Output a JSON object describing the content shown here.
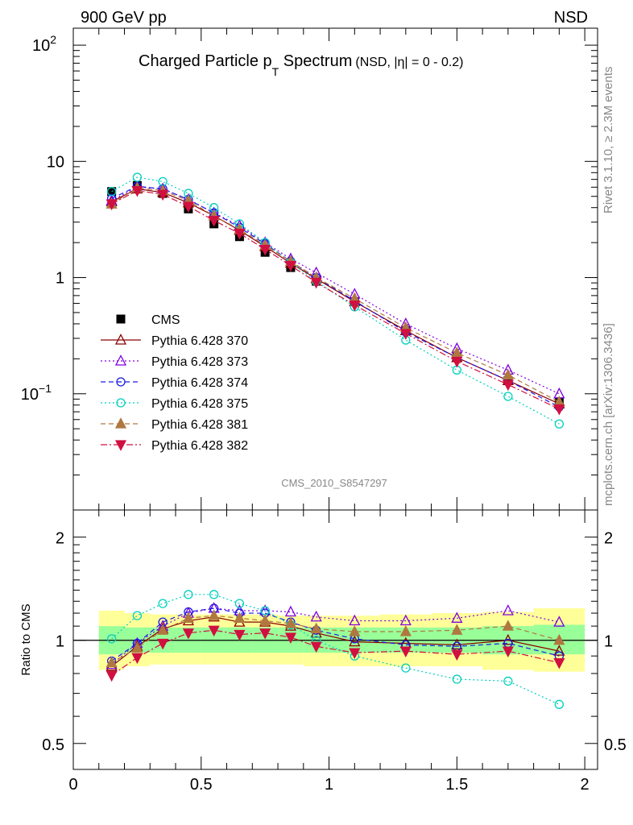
{
  "header": {
    "energy": "900 GeV pp",
    "process": "NSD",
    "side_top": "Rivet 3.1.10, ≥ 2.3M events",
    "side_bottom": "mcplots.cern.ch [arXiv:1306.3436]"
  },
  "main_plot": {
    "title_main": "Charged Particle p",
    "title_sub": "T",
    "title_tail": " Spectrum",
    "title_sel": "(NSD, |η| =   0 - 0.2)",
    "analysis": "CMS_2010_S8547297",
    "yticks": [
      {
        "v": 100,
        "label": "10",
        "exp": "2"
      },
      {
        "v": 10,
        "label": "10",
        "exp": ""
      },
      {
        "v": 1,
        "label": "1",
        "exp": ""
      },
      {
        "v": 0.1,
        "label": "10",
        "exp": "−1"
      }
    ]
  },
  "ratio_plot": {
    "ylabel": "Ratio to CMS",
    "yticks": [
      "2",
      "1",
      "0.5"
    ]
  },
  "xticks": [
    "0",
    "0.5",
    "1",
    "1.5",
    "2"
  ],
  "chart_data": [
    {
      "type": "scatter",
      "panel": "spectrum",
      "scale": "log-y",
      "xlim": [
        0,
        2.05
      ],
      "ylim": [
        0.01,
        140
      ],
      "x": [
        0.15,
        0.25,
        0.35,
        0.45,
        0.55,
        0.65,
        0.75,
        0.85,
        0.95,
        1.1,
        1.3,
        1.5,
        1.7,
        1.9
      ],
      "series": [
        {
          "name": "CMS",
          "color": "#000000",
          "marker": "square-filled",
          "line": "none",
          "values": [
            5.5,
            6.2,
            5.3,
            3.9,
            2.9,
            2.25,
            1.65,
            1.22,
            0.93,
            0.62,
            0.35,
            0.21,
            0.13,
            0.085
          ]
        },
        {
          "name": "Pythia 6.428 370",
          "color": "#8b0000",
          "marker": "triangle-up-open",
          "line": "solid",
          "values": [
            4.5,
            5.8,
            5.4,
            4.4,
            3.4,
            2.55,
            1.85,
            1.33,
            0.98,
            0.62,
            0.35,
            0.205,
            0.13,
            0.082
          ]
        },
        {
          "name": "Pythia 6.428 373",
          "color": "#8000e0",
          "marker": "triangle-up-open",
          "line": "dotted",
          "values": [
            4.6,
            6.0,
            5.8,
            4.7,
            3.6,
            2.8,
            2.0,
            1.45,
            1.1,
            0.72,
            0.4,
            0.245,
            0.16,
            0.1
          ]
        },
        {
          "name": "Pythia 6.428 374",
          "color": "#1a1ae6",
          "marker": "circle-open",
          "line": "dashed",
          "values": [
            4.8,
            6.1,
            5.8,
            4.7,
            3.6,
            2.7,
            1.95,
            1.38,
            1.0,
            0.63,
            0.34,
            0.205,
            0.13,
            0.077
          ]
        },
        {
          "name": "Pythia 6.428 375",
          "color": "#00d0c0",
          "marker": "circle-open",
          "line": "dotted",
          "values": [
            5.5,
            7.3,
            6.7,
            5.3,
            4.0,
            2.9,
            2.0,
            1.35,
            0.93,
            0.56,
            0.29,
            0.16,
            0.095,
            0.055
          ]
        },
        {
          "name": "Pythia 6.428 381",
          "color": "#b07840",
          "marker": "triangle-up-filled",
          "line": "dashed",
          "values": [
            4.3,
            5.9,
            5.6,
            4.6,
            3.4,
            2.6,
            1.9,
            1.38,
            1.0,
            0.66,
            0.37,
            0.225,
            0.145,
            0.085
          ]
        },
        {
          "name": "Pythia 6.428 382",
          "color": "#d01040",
          "marker": "triangle-down-filled",
          "line": "dashdot",
          "values": [
            4.3,
            5.6,
            5.2,
            4.1,
            3.1,
            2.4,
            1.75,
            1.27,
            0.91,
            0.58,
            0.33,
            0.19,
            0.12,
            0.074
          ]
        }
      ]
    },
    {
      "type": "scatter",
      "panel": "ratio",
      "scale": "log-y",
      "ylabel": "Ratio to CMS",
      "xlim": [
        0,
        2.05
      ],
      "ylim": [
        0.42,
        2.4
      ],
      "x": [
        0.15,
        0.25,
        0.35,
        0.45,
        0.55,
        0.65,
        0.75,
        0.85,
        0.95,
        1.1,
        1.3,
        1.5,
        1.7,
        1.9
      ],
      "uncertainty_bins": [
        {
          "x0": 0.1,
          "x1": 0.2,
          "inner": [
            0.91,
            1.1
          ],
          "outer": [
            0.82,
            1.22
          ]
        },
        {
          "x0": 0.2,
          "x1": 0.3,
          "inner": [
            0.92,
            1.09
          ],
          "outer": [
            0.84,
            1.2
          ]
        },
        {
          "x0": 0.3,
          "x1": 0.4,
          "inner": [
            0.92,
            1.09
          ],
          "outer": [
            0.85,
            1.19
          ]
        },
        {
          "x0": 0.4,
          "x1": 0.5,
          "inner": [
            0.92,
            1.09
          ],
          "outer": [
            0.85,
            1.19
          ]
        },
        {
          "x0": 0.5,
          "x1": 0.6,
          "inner": [
            0.92,
            1.09
          ],
          "outer": [
            0.85,
            1.19
          ]
        },
        {
          "x0": 0.6,
          "x1": 0.7,
          "inner": [
            0.92,
            1.09
          ],
          "outer": [
            0.85,
            1.19
          ]
        },
        {
          "x0": 0.7,
          "x1": 0.8,
          "inner": [
            0.92,
            1.09
          ],
          "outer": [
            0.85,
            1.19
          ]
        },
        {
          "x0": 0.8,
          "x1": 0.9,
          "inner": [
            0.92,
            1.09
          ],
          "outer": [
            0.85,
            1.18
          ]
        },
        {
          "x0": 0.9,
          "x1": 1.0,
          "inner": [
            0.92,
            1.09
          ],
          "outer": [
            0.84,
            1.18
          ]
        },
        {
          "x0": 1.0,
          "x1": 1.2,
          "inner": [
            0.92,
            1.09
          ],
          "outer": [
            0.84,
            1.18
          ]
        },
        {
          "x0": 1.2,
          "x1": 1.4,
          "inner": [
            0.92,
            1.09
          ],
          "outer": [
            0.84,
            1.19
          ]
        },
        {
          "x0": 1.4,
          "x1": 1.6,
          "inner": [
            0.92,
            1.09
          ],
          "outer": [
            0.84,
            1.2
          ]
        },
        {
          "x0": 1.6,
          "x1": 1.8,
          "inner": [
            0.91,
            1.1
          ],
          "outer": [
            0.82,
            1.21
          ]
        },
        {
          "x0": 1.8,
          "x1": 2.0,
          "inner": [
            0.91,
            1.11
          ],
          "outer": [
            0.81,
            1.24
          ]
        }
      ],
      "series": [
        {
          "name": "Pythia 6.428 370",
          "color": "#8b0000",
          "marker": "triangle-up-open",
          "line": "solid",
          "values": [
            0.84,
            0.96,
            1.08,
            1.14,
            1.17,
            1.13,
            1.13,
            1.1,
            1.05,
            0.99,
            0.98,
            0.97,
            1.0,
            0.93
          ]
        },
        {
          "name": "Pythia 6.428 373",
          "color": "#8000e0",
          "marker": "triangle-up-open",
          "line": "dotted",
          "values": [
            0.85,
            0.98,
            1.1,
            1.2,
            1.24,
            1.22,
            1.22,
            1.21,
            1.17,
            1.14,
            1.14,
            1.16,
            1.22,
            1.13
          ]
        },
        {
          "name": "Pythia 6.428 374",
          "color": "#1a1ae6",
          "marker": "circle-open",
          "line": "dashed",
          "values": [
            0.87,
            0.98,
            1.13,
            1.21,
            1.24,
            1.2,
            1.2,
            1.13,
            1.07,
            1.01,
            0.97,
            0.96,
            0.98,
            0.9
          ]
        },
        {
          "name": "Pythia 6.428 375",
          "color": "#00d0c0",
          "marker": "circle-open",
          "line": "dotted",
          "values": [
            1.01,
            1.18,
            1.28,
            1.36,
            1.36,
            1.28,
            1.22,
            1.11,
            1.0,
            0.9,
            0.83,
            0.77,
            0.76,
            0.65
          ]
        },
        {
          "name": "Pythia 6.428 381",
          "color": "#b07840",
          "marker": "triangle-up-filled",
          "line": "dashed",
          "values": [
            0.86,
            0.95,
            1.07,
            1.16,
            1.18,
            1.16,
            1.14,
            1.12,
            1.08,
            1.06,
            1.06,
            1.07,
            1.1,
            1.0
          ]
        },
        {
          "name": "Pythia 6.428 382",
          "color": "#d01040",
          "marker": "triangle-down-filled",
          "line": "dashdot",
          "values": [
            0.79,
            0.89,
            0.98,
            1.05,
            1.07,
            1.04,
            1.05,
            1.02,
            0.96,
            0.92,
            0.93,
            0.91,
            0.93,
            0.86
          ]
        }
      ]
    }
  ]
}
